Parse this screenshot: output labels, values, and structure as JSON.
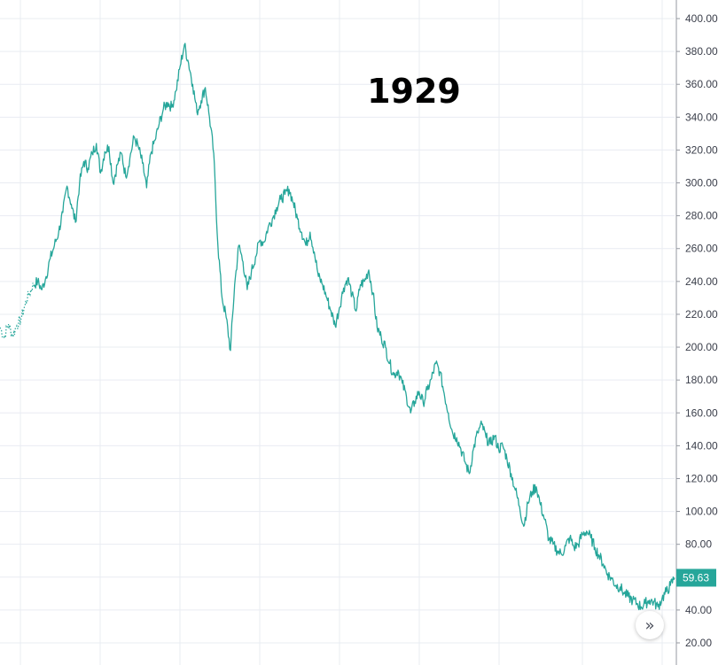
{
  "chart_data": {
    "type": "line",
    "title": "1929",
    "xlabel": "",
    "ylabel": "",
    "ylim": [
      10,
      410
    ],
    "grid": true,
    "y_ticks": [
      "20.00",
      "40.00",
      "60.00",
      "80.00",
      "100.00",
      "120.00",
      "140.00",
      "160.00",
      "180.00",
      "200.00",
      "220.00",
      "240.00",
      "260.00",
      "280.00",
      "300.00",
      "320.00",
      "340.00",
      "360.00",
      "380.00",
      "400.00"
    ],
    "last_price": "59.63",
    "series": [
      {
        "color": "#26a69a",
        "values": [
          212,
          206,
          214,
          207,
          213,
          217,
          226,
          233,
          238,
          240,
          235,
          243,
          254,
          262,
          270,
          282,
          298,
          287,
          276,
          300,
          313,
          309,
          318,
          324,
          306,
          319,
          322,
          300,
          311,
          318,
          304,
          315,
          328,
          322,
          312,
          297,
          318,
          326,
          336,
          345,
          349,
          346,
          356,
          371,
          384,
          373,
          360,
          343,
          350,
          358,
          340,
          318,
          262,
          230,
          218,
          198,
          238,
          262,
          252,
          235,
          246,
          255,
          265,
          264,
          273,
          278,
          285,
          290,
          293,
          296,
          288,
          278,
          270,
          262,
          270,
          258,
          243,
          238,
          230,
          222,
          213,
          224,
          236,
          242,
          232,
          222,
          238,
          240,
          247,
          233,
          212,
          206,
          200,
          190,
          183,
          186,
          178,
          170,
          160,
          167,
          173,
          166,
          174,
          181,
          190,
          185,
          172,
          160,
          148,
          145,
          138,
          130,
          123,
          138,
          148,
          153,
          145,
          141,
          146,
          138,
          140,
          132,
          123,
          113,
          103,
          91,
          105,
          112,
          115,
          104,
          95,
          83,
          80,
          76,
          74,
          79,
          84,
          78,
          80,
          86,
          88,
          84,
          78,
          73,
          68,
          62,
          59,
          55,
          54,
          50,
          48,
          46,
          44,
          42,
          44,
          46,
          45,
          42,
          47,
          51,
          55,
          59.63
        ]
      }
    ]
  },
  "ui": {
    "scroll_icon": "double-chevron-right-icon",
    "scroll_glyph": "»"
  }
}
